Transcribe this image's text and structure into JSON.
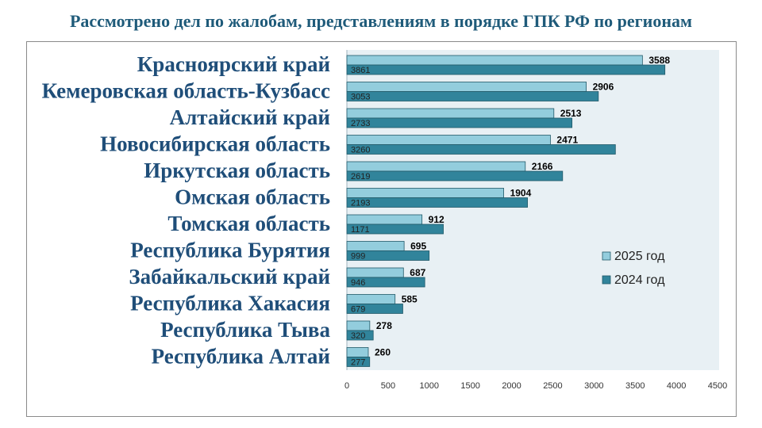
{
  "title": "Рассмотрено дел по жалобам, представлениям в порядке ГПК РФ по регионам",
  "colors": {
    "series_2025": "#93cddd",
    "series_2024": "#31849b",
    "bar_border": "#215968",
    "plot_bg": "#e8f0f4",
    "label_text": "#1f4e79"
  },
  "chart_data": {
    "type": "bar",
    "orientation": "horizontal",
    "title": "Рассмотрено дел по жалобам, представлениям в порядке ГПК РФ по регионам",
    "categories": [
      "Красноярский край",
      "Кемеровская область-Кузбасс",
      "Алтайский край",
      "Новосибирская область",
      "Иркутская область",
      "Омская область",
      "Томская область",
      "Республика Бурятия",
      "Забайкальский край",
      "Республика Хакасия",
      "Республика Тыва",
      "Республика Алтай"
    ],
    "series": [
      {
        "name": "2025 год",
        "values": [
          3588,
          2906,
          2513,
          2471,
          2166,
          1904,
          912,
          695,
          687,
          585,
          278,
          260
        ]
      },
      {
        "name": "2024 год",
        "values": [
          3861,
          3053,
          2733,
          3260,
          2619,
          2193,
          1171,
          999,
          946,
          679,
          320,
          277
        ]
      }
    ],
    "xlim": [
      0,
      4500
    ],
    "xticks": [
      0,
      500,
      1000,
      1500,
      2000,
      2500,
      3000,
      3500,
      4000,
      4500
    ],
    "grid": false,
    "legend_position": "right"
  }
}
